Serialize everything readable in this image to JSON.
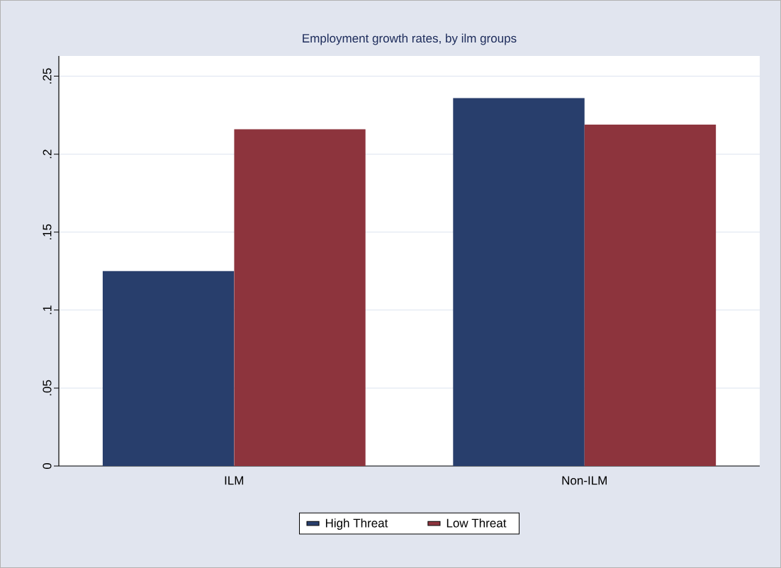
{
  "chart_data": {
    "type": "bar",
    "title": "Employment growth rates, by ilm groups",
    "categories": [
      "ILM",
      "Non-ILM"
    ],
    "series": [
      {
        "name": "High Threat",
        "color": "#283e6c",
        "values": [
          0.125,
          0.236
        ]
      },
      {
        "name": "Low Threat",
        "color": "#8d343d",
        "values": [
          0.216,
          0.219
        ]
      }
    ],
    "ylim": [
      0,
      0.263
    ],
    "yticks": [
      0,
      {
        "value": 0.05,
        "label": ".05"
      },
      {
        "value": 0.1,
        "label": ".1"
      },
      {
        "value": 0.15,
        "label": ".15"
      },
      {
        "value": 0.2,
        "label": ".2"
      },
      {
        "value": 0.25,
        "label": ".25"
      }
    ],
    "grid": "y",
    "legend": "bottom"
  }
}
